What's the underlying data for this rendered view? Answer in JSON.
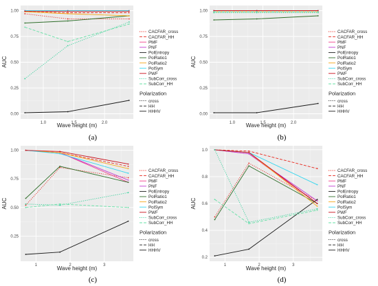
{
  "legend": {
    "series_names": [
      "CACFAR_cross",
      "CACFAR_HH",
      "PMF",
      "PNF",
      "PolEntropy",
      "PolRatio1",
      "PolRatio2",
      "PolSym",
      "PWF",
      "SubCorr_cross",
      "SubCorr_HH"
    ],
    "polarization_title": "Polarization",
    "polarization_items": [
      "cross",
      "HH",
      "HHHV"
    ]
  },
  "colors": {
    "CACFAR_cross": "#e8281e",
    "CACFAR_HH": "#e8281e",
    "PMF": "#f03e8c",
    "PNF": "#c23bd1",
    "PolEntropy": "#1a1a1a",
    "PolRatio1": "#2f6e2a",
    "PolRatio2": "#f5a91c",
    "PolSym": "#33d6ee",
    "PWF": "#c80f1a",
    "SubCorr_cross": "#33d19a",
    "SubCorr_HH": "#66e0a6"
  },
  "chart_data": [
    {
      "type": "line",
      "panel_label": "(a)",
      "xlabel": "Wave height (m)",
      "ylabel": "AUC",
      "xlim": [
        0.63,
        2.47
      ],
      "ylim": [
        -0.05,
        1.05
      ],
      "xticks": [
        1.0,
        1.5,
        2.0
      ],
      "xtick_labels": [
        "1.0",
        "1.5",
        "2.0"
      ],
      "yticks": [
        0,
        0.25,
        0.5,
        0.75,
        1.0
      ],
      "ytick_labels": [
        "0.00",
        "0.25",
        "0.50",
        "0.75",
        "1.00"
      ],
      "x": [
        0.7,
        1.4,
        2.4
      ],
      "grid": true,
      "series": [
        {
          "name": "CACFAR_cross",
          "pol": "cross",
          "values": [
            0.97,
            0.92,
            0.92
          ]
        },
        {
          "name": "CACFAR_HH",
          "pol": "HH",
          "values": [
            0.99,
            0.98,
            0.98
          ]
        },
        {
          "name": "PMF",
          "pol": "HHHV",
          "values": [
            1.0,
            1.0,
            1.0
          ]
        },
        {
          "name": "PNF",
          "pol": "HHHV",
          "values": [
            1.0,
            1.0,
            1.0
          ]
        },
        {
          "name": "PolEntropy",
          "pol": "HHHV",
          "values": [
            0.01,
            0.02,
            0.13
          ]
        },
        {
          "name": "PolRatio1",
          "pol": "HHHV",
          "values": [
            0.88,
            0.9,
            0.95
          ]
        },
        {
          "name": "PolRatio2",
          "pol": "HHHV",
          "values": [
            0.99,
            0.97,
            0.95
          ]
        },
        {
          "name": "PolSym",
          "pol": "HHHV",
          "values": [
            1.0,
            1.0,
            1.0
          ]
        },
        {
          "name": "PWF",
          "pol": "HHHV",
          "values": [
            0.995,
            0.995,
            0.995
          ]
        },
        {
          "name": "SubCorr_cross",
          "pol": "cross",
          "values": [
            0.34,
            0.66,
            0.89
          ]
        },
        {
          "name": "SubCorr_HH",
          "pol": "HH",
          "values": [
            0.84,
            0.7,
            0.87
          ]
        }
      ]
    },
    {
      "type": "line",
      "panel_label": "(b)",
      "xlabel": "Wave height (m)",
      "ylabel": "AUC",
      "xlim": [
        0.63,
        2.47
      ],
      "ylim": [
        -0.05,
        1.05
      ],
      "xticks": [
        1.0,
        1.5,
        2.0
      ],
      "xtick_labels": [
        "1.0",
        "1.5",
        "2.0"
      ],
      "yticks": [
        0,
        0.25,
        0.5,
        0.75,
        1.0
      ],
      "ytick_labels": [
        "0.00",
        "0.25",
        "0.50",
        "0.75",
        "1.00"
      ],
      "x": [
        0.7,
        1.4,
        2.4
      ],
      "grid": true,
      "series": [
        {
          "name": "CACFAR_cross",
          "pol": "cross",
          "values": [
            0.99,
            0.99,
            0.99
          ]
        },
        {
          "name": "CACFAR_HH",
          "pol": "HH",
          "values": [
            1.0,
            1.0,
            1.0
          ]
        },
        {
          "name": "PMF",
          "pol": "HHHV",
          "values": [
            1.0,
            1.0,
            1.0
          ]
        },
        {
          "name": "PNF",
          "pol": "HHHV",
          "values": [
            1.0,
            1.0,
            1.0
          ]
        },
        {
          "name": "PolEntropy",
          "pol": "HHHV",
          "values": [
            0.01,
            0.01,
            0.1
          ]
        },
        {
          "name": "PolRatio1",
          "pol": "HHHV",
          "values": [
            0.91,
            0.92,
            0.95
          ]
        },
        {
          "name": "PolRatio2",
          "pol": "HHHV",
          "values": [
            0.99,
            0.99,
            0.99
          ]
        },
        {
          "name": "PolSym",
          "pol": "HHHV",
          "values": [
            1.0,
            1.0,
            1.0
          ]
        },
        {
          "name": "PWF",
          "pol": "HHHV",
          "values": [
            1.0,
            1.0,
            1.0
          ]
        },
        {
          "name": "SubCorr_cross",
          "pol": "cross",
          "values": [
            0.98,
            0.98,
            0.98
          ]
        },
        {
          "name": "SubCorr_HH",
          "pol": "HH",
          "values": [
            0.99,
            0.99,
            0.99
          ]
        }
      ]
    },
    {
      "type": "line",
      "panel_label": "(c)",
      "xlabel": "Wave height (m)",
      "ylabel": "AUC",
      "xlim": [
        0.55,
        3.85
      ],
      "ylim": [
        0.03,
        1.04
      ],
      "xticks": [
        1,
        2,
        3
      ],
      "xtick_labels": [
        "1",
        "2",
        "3"
      ],
      "yticks": [
        0.25,
        0.5,
        0.75,
        1.0
      ],
      "ytick_labels": [
        "0.25",
        "0.50",
        "0.75",
        "1.00"
      ],
      "x": [
        0.7,
        1.7,
        3.7
      ],
      "grid": true,
      "series": [
        {
          "name": "CACFAR_cross",
          "pol": "cross",
          "values": [
            0.52,
            0.85,
            0.76
          ]
        },
        {
          "name": "CACFAR_HH",
          "pol": "HH",
          "values": [
            1.0,
            0.98,
            0.86
          ]
        },
        {
          "name": "PMF",
          "pol": "HHHV",
          "values": [
            1.0,
            0.98,
            0.72
          ]
        },
        {
          "name": "PNF",
          "pol": "HHHV",
          "values": [
            1.0,
            0.98,
            0.74
          ]
        },
        {
          "name": "PolEntropy",
          "pol": "HHHV",
          "values": [
            0.09,
            0.11,
            0.38
          ]
        },
        {
          "name": "PolRatio1",
          "pol": "HHHV",
          "values": [
            0.58,
            0.86,
            0.72
          ]
        },
        {
          "name": "PolRatio2",
          "pol": "HHHV",
          "values": [
            1.0,
            0.98,
            0.84
          ]
        },
        {
          "name": "PolSym",
          "pol": "HHHV",
          "values": [
            1.0,
            0.97,
            0.8
          ]
        },
        {
          "name": "PWF",
          "pol": "HHHV",
          "values": [
            1.0,
            0.99,
            0.88
          ]
        },
        {
          "name": "SubCorr_cross",
          "pol": "cross",
          "values": [
            0.53,
            0.52,
            0.63
          ]
        },
        {
          "name": "SubCorr_HH",
          "pol": "HH",
          "values": [
            0.5,
            0.53,
            0.5
          ]
        }
      ]
    },
    {
      "type": "line",
      "panel_label": "(d)",
      "xlabel": "Wave height (m)",
      "ylabel": "AUC",
      "xlim": [
        0.55,
        3.85
      ],
      "ylim": [
        0.17,
        1.03
      ],
      "xticks": [
        1,
        2,
        3
      ],
      "xtick_labels": [
        "1",
        "2",
        "3"
      ],
      "yticks": [
        0.2,
        0.4,
        0.6,
        0.8,
        1.0
      ],
      "ytick_labels": [
        "0.2",
        "0.4",
        "0.6",
        "0.8",
        "1.0"
      ],
      "x": [
        0.7,
        1.7,
        3.7
      ],
      "grid": true,
      "series": [
        {
          "name": "CACFAR_cross",
          "pol": "cross",
          "values": [
            0.5,
            0.9,
            0.62
          ]
        },
        {
          "name": "CACFAR_HH",
          "pol": "HH",
          "values": [
            1.0,
            0.99,
            0.86
          ]
        },
        {
          "name": "PMF",
          "pol": "HHHV",
          "values": [
            1.0,
            0.97,
            0.6
          ]
        },
        {
          "name": "PNF",
          "pol": "HHHV",
          "values": [
            1.0,
            0.97,
            0.62
          ]
        },
        {
          "name": "PolEntropy",
          "pol": "HHHV",
          "values": [
            0.21,
            0.26,
            0.63
          ]
        },
        {
          "name": "PolRatio1",
          "pol": "HHHV",
          "values": [
            0.48,
            0.88,
            0.6
          ]
        },
        {
          "name": "PolRatio2",
          "pol": "HHHV",
          "values": [
            1.0,
            0.98,
            0.58
          ]
        },
        {
          "name": "PolSym",
          "pol": "HHHV",
          "values": [
            1.0,
            0.98,
            0.74
          ]
        },
        {
          "name": "PWF",
          "pol": "HHHV",
          "values": [
            1.0,
            0.98,
            0.6
          ]
        },
        {
          "name": "SubCorr_cross",
          "pol": "cross",
          "values": [
            1.0,
            0.46,
            0.56
          ]
        },
        {
          "name": "SubCorr_HH",
          "pol": "HH",
          "values": [
            0.63,
            0.45,
            0.55
          ]
        }
      ]
    }
  ]
}
